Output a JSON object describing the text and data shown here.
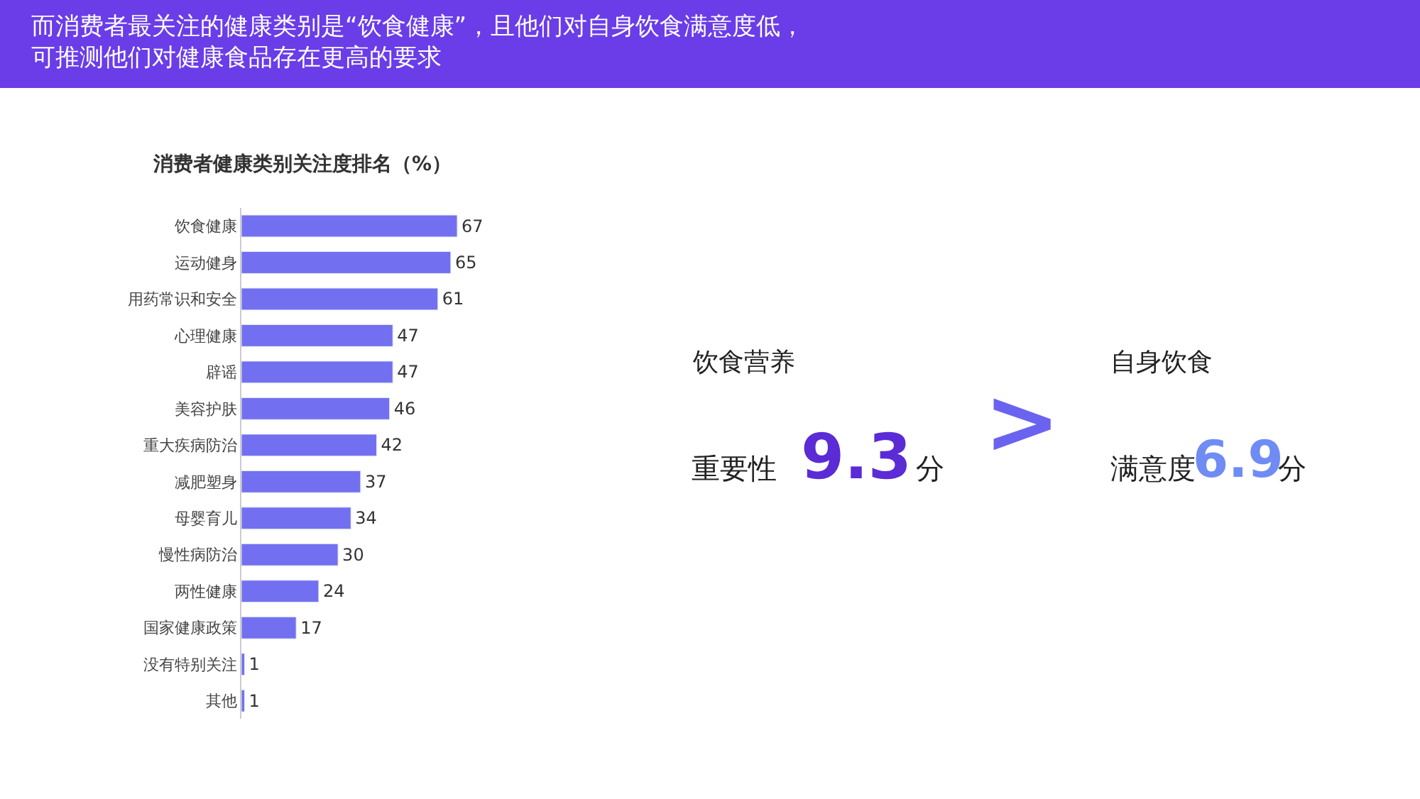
{
  "chart_data": [
    {
      "type": "bar",
      "orientation": "horizontal",
      "title": "而消费者最关注的健康类别是“饮食健康”，且他们对自身饮食满意度低，可推测他们对健康食品存在更高的要求",
      "subtitle": "消费者健康类别关注度排名（%）",
      "categories": [
        "饮食健康",
        "运动健身",
        "用药常识和安全",
        "心理健康",
        "辟谣",
        "美容护肤",
        "重大疾病防治",
        "减肥塑身",
        "母婴育儿",
        "慢性病防治",
        "两性健康",
        "国家健康政策",
        "没有特别关注",
        "其他"
      ],
      "values": [
        67,
        65,
        61,
        47,
        47,
        46,
        42,
        37,
        34,
        30,
        24,
        17,
        1,
        1
      ],
      "color": "#7270f0",
      "data_labels": true
    },
    {
      "type": "other",
      "annotations": [
        "饮食营养",
        "重要性",
        "9.3",
        "分",
        ">",
        "自身饮食",
        "满意度",
        "6.9",
        "分"
      ]
    }
  ]
}
